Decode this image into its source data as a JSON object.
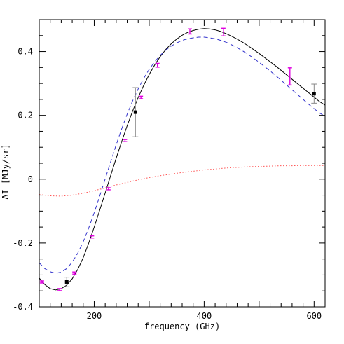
{
  "chart_data": {
    "type": "line",
    "title": "",
    "xlabel": "frequency (GHz)",
    "ylabel": "ΔI [MJy/sr]",
    "xlim": [
      100,
      620
    ],
    "ylim": [
      -0.4,
      0.5
    ],
    "x_ticks": [
      200,
      400,
      600
    ],
    "y_ticks": [
      -0.4,
      -0.2,
      0,
      0.2,
      0.4
    ],
    "x_tick_labels": [
      "200",
      "400",
      "600"
    ],
    "y_tick_labels": [
      "-0.4",
      "-0.2",
      "0",
      "0.2",
      "0.4"
    ],
    "grid": false,
    "legend": "none",
    "colors": {
      "solid": "#000000",
      "dashed": "#3333cc",
      "dotted": "#ff5555",
      "magenta": "#e000e0",
      "black_points": "#000000",
      "black_errorbars": "#888888"
    },
    "series": [
      {
        "style": "solid",
        "x": [
          100,
          110,
          120,
          130,
          140,
          150,
          160,
          170,
          180,
          190,
          200,
          210,
          220,
          230,
          240,
          250,
          260,
          270,
          280,
          290,
          300,
          310,
          320,
          330,
          340,
          350,
          360,
          370,
          380,
          390,
          400,
          410,
          420,
          430,
          440,
          450,
          460,
          470,
          480,
          490,
          500,
          510,
          520,
          530,
          540,
          550,
          560,
          570,
          580,
          590,
          600,
          610,
          620
        ],
        "y": [
          -0.31,
          -0.33,
          -0.343,
          -0.347,
          -0.343,
          -0.332,
          -0.312,
          -0.283,
          -0.246,
          -0.2,
          -0.15,
          -0.097,
          -0.043,
          0.012,
          0.066,
          0.118,
          0.168,
          0.214,
          0.256,
          0.294,
          0.328,
          0.358,
          0.384,
          0.406,
          0.424,
          0.439,
          0.451,
          0.46,
          0.466,
          0.47,
          0.472,
          0.471,
          0.468,
          0.463,
          0.456,
          0.448,
          0.439,
          0.429,
          0.418,
          0.406,
          0.394,
          0.381,
          0.368,
          0.355,
          0.341,
          0.327,
          0.313,
          0.299,
          0.285,
          0.271,
          0.257,
          0.243,
          0.232
        ]
      },
      {
        "style": "dashed",
        "x": [
          100,
          110,
          120,
          130,
          140,
          150,
          160,
          170,
          180,
          190,
          200,
          210,
          220,
          230,
          240,
          250,
          260,
          270,
          280,
          290,
          300,
          310,
          320,
          330,
          340,
          350,
          360,
          370,
          380,
          390,
          400,
          410,
          420,
          430,
          440,
          450,
          460,
          470,
          480,
          490,
          500,
          510,
          520,
          530,
          540,
          550,
          560,
          570,
          580,
          590,
          600,
          610,
          620
        ],
        "y": [
          -0.262,
          -0.28,
          -0.29,
          -0.295,
          -0.291,
          -0.28,
          -0.26,
          -0.232,
          -0.196,
          -0.153,
          -0.105,
          -0.053,
          0.001,
          0.055,
          0.108,
          0.158,
          0.204,
          0.246,
          0.283,
          0.316,
          0.344,
          0.368,
          0.388,
          0.404,
          0.417,
          0.427,
          0.435,
          0.44,
          0.443,
          0.445,
          0.445,
          0.443,
          0.44,
          0.435,
          0.429,
          0.421,
          0.412,
          0.402,
          0.391,
          0.379,
          0.366,
          0.353,
          0.339,
          0.325,
          0.31,
          0.295,
          0.28,
          0.265,
          0.25,
          0.235,
          0.221,
          0.207,
          0.198
        ]
      },
      {
        "style": "dotted",
        "x": [
          100,
          120,
          140,
          160,
          180,
          200,
          220,
          240,
          260,
          280,
          300,
          320,
          340,
          360,
          380,
          400,
          420,
          440,
          460,
          480,
          500,
          520,
          540,
          560,
          580,
          600,
          620
        ],
        "y": [
          -0.048,
          -0.052,
          -0.053,
          -0.05,
          -0.044,
          -0.036,
          -0.027,
          -0.018,
          -0.01,
          -0.002,
          0.005,
          0.011,
          0.016,
          0.021,
          0.025,
          0.029,
          0.032,
          0.035,
          0.037,
          0.039,
          0.04,
          0.041,
          0.042,
          0.042,
          0.043,
          0.043,
          0.043
        ]
      }
    ],
    "points_magenta": [
      {
        "x": 105,
        "y": -0.322,
        "err": 0.003
      },
      {
        "x": 137,
        "y": -0.346,
        "err": 0.003
      },
      {
        "x": 164,
        "y": -0.294,
        "err": 0.003
      },
      {
        "x": 196,
        "y": -0.181,
        "err": 0.003
      },
      {
        "x": 226,
        "y": -0.03,
        "err": 0.003
      },
      {
        "x": 256,
        "y": 0.121,
        "err": 0.003
      },
      {
        "x": 285,
        "y": 0.256,
        "err": 0.004
      },
      {
        "x": 315,
        "y": 0.357,
        "err": 0.006
      },
      {
        "x": 374,
        "y": 0.463,
        "err": 0.008
      },
      {
        "x": 435,
        "y": 0.461,
        "err": 0.012
      },
      {
        "x": 556,
        "y": 0.322,
        "err": 0.027
      }
    ],
    "points_black": [
      {
        "x": 150,
        "y": -0.322,
        "err": 0.015
      },
      {
        "x": 275,
        "y": 0.21,
        "err": 0.077
      },
      {
        "x": 600,
        "y": 0.268,
        "err": 0.03
      }
    ]
  }
}
